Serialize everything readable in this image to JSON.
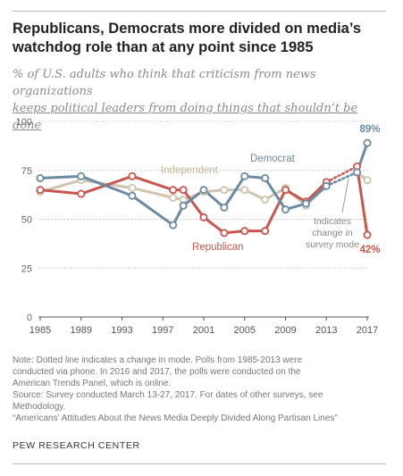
{
  "header": {
    "title": "Republicans, Democrats more divided on media’s watchdog role than at any point since 1985",
    "subtitle_part1": "% of U.S. adults who think that criticism from news organizations",
    "subtitle_part2": "keeps political leaders from doing things that shouldn’t be done"
  },
  "chart_data": {
    "type": "line",
    "title": "",
    "xlabel": "",
    "ylabel": "",
    "xlim": [
      1985,
      2017
    ],
    "ylim": [
      0,
      100
    ],
    "x_ticks": [
      "1985",
      "1989",
      "1993",
      "1997",
      "2001",
      "2005",
      "2009",
      "2013",
      "2017"
    ],
    "y_ticks": [
      "0",
      "25",
      "50",
      "75",
      "100"
    ],
    "grid": "horizontal dotted",
    "mode_change_after": 2013,
    "series": [
      {
        "name": "Democrat",
        "color": "#6b8aa3",
        "x": [
          1985,
          1989,
          1994,
          1998,
          1999,
          2001,
          2003,
          2005,
          2007,
          2009,
          2011,
          2013,
          2016,
          2017
        ],
        "y": [
          71,
          72,
          62,
          47,
          57,
          65,
          56,
          72,
          71,
          55,
          58,
          67,
          74,
          89
        ]
      },
      {
        "name": "Republican",
        "color": "#c8574f",
        "x": [
          1985,
          1989,
          1994,
          1998,
          1999,
          2001,
          2003,
          2005,
          2007,
          2009,
          2011,
          2013,
          2016,
          2017
        ],
        "y": [
          65,
          63,
          72,
          65,
          65,
          51,
          43,
          44,
          44,
          65,
          59,
          69,
          77,
          42
        ]
      },
      {
        "name": "Independent",
        "color": "#cfc4ad",
        "x": [
          1985,
          1989,
          1994,
          1998,
          1999,
          2001,
          2003,
          2005,
          2007,
          2009,
          2011,
          2013,
          2016,
          2017
        ],
        "y": [
          64,
          70,
          66,
          61,
          60,
          64,
          65,
          65,
          60,
          66,
          57,
          67,
          74,
          70
        ]
      }
    ],
    "labels": {
      "democrat": "Democrat",
      "republican": "Republican",
      "independent": "Independent",
      "dem_end": "89%",
      "rep_end": "42%",
      "annotation_line1": "Indicates",
      "annotation_line2": "change in",
      "annotation_line3": "survey mode"
    }
  },
  "notes": {
    "line1": "Note: Dotted line indicates a change in mode. Polls from 1985-2013 were",
    "line2": "conducted via phone. In 2016 and 2017, the polls were conducted on the",
    "line3": "American Trends Panel, which is online.",
    "line4": "Source: Survey conducted March 13-27, 2017. For dates of other surveys, see",
    "line5": "Methodology.",
    "line6": "“Americans’ Attitudes About the News Media Deeply Divided Along Partisan Lines”"
  },
  "footer": {
    "source_name": "PEW RESEARCH CENTER"
  }
}
